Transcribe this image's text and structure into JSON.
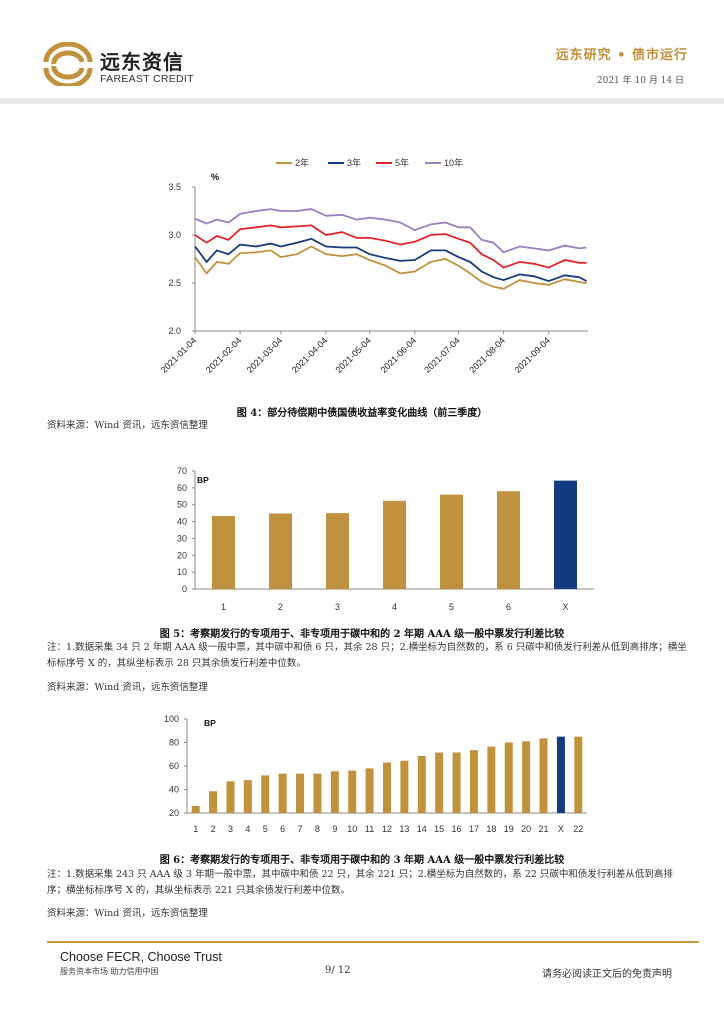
{
  "header": {
    "brand_cn": "远东资信",
    "brand_en": "FAREAST CREDIT",
    "title": "远东研究 • 债市运行",
    "date": "2021 年 10 月 14 日"
  },
  "figures": [
    {
      "caption": "图 4：部分待偿期中债国债收益率变化曲线（前三季度）",
      "source": "资料来源：Wind 资讯，远东资信整理"
    },
    {
      "caption": "图 5：考察期发行的专项用于、非专项用于碳中和的 2 年期 AAA 级一般中票发行利差比较",
      "note": "注：1.数据采集 34 只 2 年期 AAA 级一般中票，其中碳中和债 6 只，其余 28 只；2.横坐标为自然数的，系 6 只碳中和债发行利差从低到高排序；横坐标标序号 X 的，其纵坐标表示 28 只其余债发行利差中位数。",
      "source": "资料来源：Wind 资讯，远东资信整理"
    },
    {
      "caption": "图 6：考察期发行的专项用于、非专项用于碳中和的 3 年期 AAA 级一般中票发行利差比较",
      "note": "注：1.数据采集 243 只 AAA 级 3 年期一般中票，其中碳中和债 22 只，其余 221 只；2.横坐标为自然数的，系 22 只碳中和债发行利差从低到高排序；横坐标标序号 X 的，其纵坐标表示 221 只其余债发行利差中位数。",
      "source": "资料来源：Wind 资讯，远东资信整理"
    }
  ],
  "footer": {
    "slogan_en": "Choose FECR, Choose Trust",
    "slogan_cn": "服务资本市场  助力信用中国",
    "page": "9/ 12",
    "disclaimer": "请务必阅读正文后的免责声明"
  },
  "colors": {
    "gold": "#c0923d",
    "navy": "#143a80",
    "red": "#e0262b",
    "purple": "#9b7fc0"
  },
  "chart_data": [
    {
      "type": "line",
      "ylabel": "%",
      "ylim": [
        2.0,
        3.5
      ],
      "yticks": [
        "2.0",
        "2.5",
        "3.0",
        "3.5"
      ],
      "xlim": [
        "2021-01-04",
        "2021-10-01"
      ],
      "xticks": [
        "2021-01-04",
        "2021-02-04",
        "2021-03-04",
        "2021-04-04",
        "2021-05-04",
        "2021-06-04",
        "2021-07-04",
        "2021-08-04",
        "2021-09-04"
      ],
      "legend": "top",
      "x": [
        "2021-01-04",
        "2021-01-12",
        "2021-01-19",
        "2021-01-27",
        "2021-02-04",
        "2021-02-15",
        "2021-02-25",
        "2021-03-04",
        "2021-03-15",
        "2021-03-25",
        "2021-04-04",
        "2021-04-15",
        "2021-04-25",
        "2021-05-04",
        "2021-05-15",
        "2021-05-25",
        "2021-06-04",
        "2021-06-15",
        "2021-06-25",
        "2021-07-04",
        "2021-07-12",
        "2021-07-20",
        "2021-07-28",
        "2021-08-04",
        "2021-08-15",
        "2021-08-25",
        "2021-09-04",
        "2021-09-15",
        "2021-09-25",
        "2021-09-30"
      ],
      "series": [
        {
          "name": "2年",
          "color": "#c0923d",
          "values": [
            2.77,
            2.6,
            2.72,
            2.7,
            2.81,
            2.82,
            2.84,
            2.77,
            2.8,
            2.88,
            2.8,
            2.78,
            2.8,
            2.74,
            2.68,
            2.6,
            2.62,
            2.72,
            2.75,
            2.68,
            2.6,
            2.51,
            2.46,
            2.44,
            2.53,
            2.5,
            2.48,
            2.54,
            2.51,
            2.5
          ]
        },
        {
          "name": "3年",
          "color": "#143a80",
          "values": [
            2.88,
            2.72,
            2.84,
            2.8,
            2.9,
            2.88,
            2.91,
            2.88,
            2.92,
            2.96,
            2.88,
            2.87,
            2.87,
            2.8,
            2.76,
            2.73,
            2.74,
            2.84,
            2.84,
            2.77,
            2.72,
            2.62,
            2.56,
            2.53,
            2.59,
            2.57,
            2.52,
            2.58,
            2.56,
            2.52
          ]
        },
        {
          "name": "5年",
          "color": "#e0262b",
          "values": [
            3.0,
            2.92,
            2.99,
            2.95,
            3.06,
            3.08,
            3.1,
            3.08,
            3.09,
            3.1,
            3.0,
            3.03,
            2.97,
            2.97,
            2.94,
            2.9,
            2.93,
            3.0,
            3.01,
            2.96,
            2.92,
            2.8,
            2.74,
            2.66,
            2.72,
            2.7,
            2.66,
            2.74,
            2.71,
            2.71
          ]
        },
        {
          "name": "10年",
          "color": "#9b7fc0",
          "values": [
            3.17,
            3.12,
            3.16,
            3.13,
            3.22,
            3.25,
            3.27,
            3.25,
            3.25,
            3.27,
            3.2,
            3.21,
            3.16,
            3.18,
            3.16,
            3.13,
            3.05,
            3.11,
            3.13,
            3.08,
            3.08,
            2.95,
            2.92,
            2.82,
            2.88,
            2.86,
            2.84,
            2.89,
            2.86,
            2.87
          ]
        }
      ]
    },
    {
      "type": "bar",
      "ylabel": "BP",
      "ylim": [
        0,
        70
      ],
      "yticks": [
        "0",
        "10",
        "20",
        "30",
        "40",
        "50",
        "60",
        "70"
      ],
      "categories": [
        "1",
        "2",
        "3",
        "4",
        "5",
        "6",
        "X"
      ],
      "values": [
        43.3,
        44.8,
        45.0,
        52.3,
        56.0,
        58.0,
        64.3
      ],
      "highlight": "X"
    },
    {
      "type": "bar",
      "ylabel": "BP",
      "ylim": [
        20,
        100
      ],
      "yticks": [
        "20",
        "40",
        "60",
        "80",
        "100"
      ],
      "categories": [
        "1",
        "2",
        "3",
        "4",
        "5",
        "6",
        "7",
        "8",
        "9",
        "10",
        "11",
        "12",
        "13",
        "14",
        "15",
        "16",
        "17",
        "18",
        "19",
        "20",
        "21",
        "X",
        "22"
      ],
      "values": [
        26,
        38.5,
        47,
        48,
        52,
        53.5,
        53.5,
        53.5,
        55.5,
        56,
        58,
        63,
        64.5,
        68.5,
        71.5,
        71.5,
        73.5,
        76.5,
        80,
        81,
        83.5,
        85,
        85
      ],
      "highlight": "X"
    }
  ]
}
